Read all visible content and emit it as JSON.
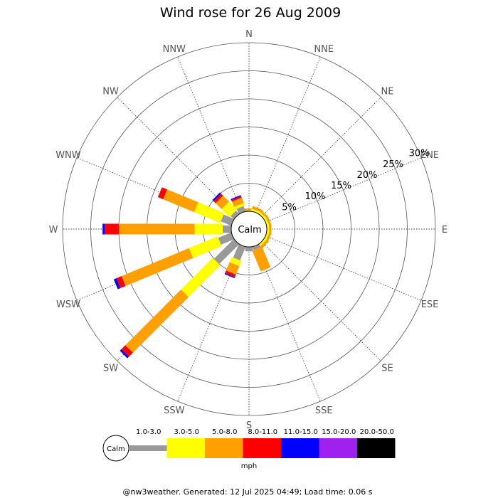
{
  "chart_data": {
    "type": "wind-rose",
    "title": "Wind rose for 26 Aug 2009",
    "directions": [
      "N",
      "NNE",
      "NE",
      "ENE",
      "E",
      "ESE",
      "SE",
      "SSE",
      "S",
      "SSW",
      "SW",
      "WSW",
      "W",
      "WNW",
      "NW",
      "NNW"
    ],
    "radial_ticks": [
      "5%",
      "10%",
      "15%",
      "20%",
      "25%",
      "30%"
    ],
    "radial_values": [
      5,
      10,
      15,
      20,
      25,
      30
    ],
    "r_max": 30,
    "calm_label": "Calm",
    "speed_bins": [
      "1.0-3.0",
      "3.0-5.0",
      "5.0-8.0",
      "8.0-11.0",
      "11.0-15.0",
      "15.0-20.0",
      "20.0-50.0"
    ],
    "bin_colors": [
      "#999999",
      "#ffff00",
      "#ffa000",
      "#ff0000",
      "#0000ff",
      "#a020f0",
      "#000000"
    ],
    "unit": "mph",
    "series": [
      {
        "direction": "N",
        "values": [
          0,
          0,
          0.5,
          0,
          0,
          0,
          0
        ]
      },
      {
        "direction": "NNE",
        "values": [
          0,
          0.4,
          0.5,
          0,
          0,
          0,
          0
        ]
      },
      {
        "direction": "NE",
        "values": [
          0,
          0.4,
          0.4,
          0,
          0,
          0,
          0
        ]
      },
      {
        "direction": "ENE",
        "values": [
          0,
          0.4,
          0.4,
          0,
          0,
          0,
          0
        ]
      },
      {
        "direction": "E",
        "values": [
          0,
          0.4,
          0.4,
          0,
          0,
          0,
          0
        ]
      },
      {
        "direction": "ESE",
        "values": [
          0,
          0.4,
          0.4,
          0,
          0,
          0,
          0
        ]
      },
      {
        "direction": "SE",
        "values": [
          0,
          0.4,
          0.5,
          0,
          0,
          0,
          0
        ]
      },
      {
        "direction": "SSE",
        "values": [
          0.6,
          0,
          4.0,
          0,
          0,
          0,
          0
        ]
      },
      {
        "direction": "S",
        "values": [
          0.8,
          0,
          0,
          0,
          0,
          0,
          0
        ]
      },
      {
        "direction": "SSW",
        "values": [
          2.6,
          1.0,
          1.6,
          0.5,
          0.2,
          0,
          0
        ]
      },
      {
        "direction": "SW",
        "values": [
          5.0,
          8.0,
          14.0,
          1.0,
          0.4,
          0,
          0
        ]
      },
      {
        "direction": "WSW",
        "values": [
          2.5,
          5.5,
          13.0,
          1.0,
          0.5,
          0,
          0
        ]
      },
      {
        "direction": "W",
        "values": [
          1.5,
          5.0,
          13.5,
          2.5,
          0.4,
          0,
          0
        ]
      },
      {
        "direction": "WNW",
        "values": [
          2.0,
          5.0,
          6.0,
          1.0,
          0,
          0,
          0
        ]
      },
      {
        "direction": "NW",
        "values": [
          0.8,
          2.0,
          1.5,
          0.5,
          0.3,
          0,
          0
        ]
      },
      {
        "direction": "NNW",
        "values": [
          1.0,
          0.5,
          1.0,
          0.3,
          0.2,
          0,
          0
        ]
      }
    ]
  },
  "footer": "@nw3weather. Generated: 12 Jul 2025 04:49; Load time: 0.06 s"
}
